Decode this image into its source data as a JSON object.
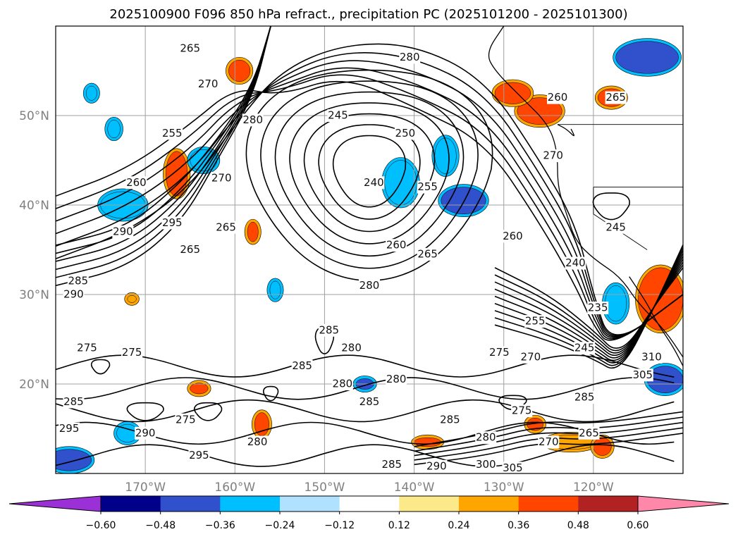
{
  "chart_data": {
    "type": "contour",
    "title": "2025100900 F096 850 hPa refract., precipitation PC (2025101200 - 2025101300)",
    "xaxis": {
      "ticks": [
        "170°W",
        "160°W",
        "150°W",
        "140°W",
        "130°W",
        "120°W"
      ],
      "tick_values": [
        -170,
        -160,
        -150,
        -140,
        -130,
        -120
      ],
      "range": [
        -180,
        -110
      ]
    },
    "yaxis": {
      "ticks": [
        "20°N",
        "30°N",
        "40°N",
        "50°N"
      ],
      "tick_values": [
        20,
        30,
        40,
        50
      ],
      "range": [
        10,
        60
      ]
    },
    "grid": true,
    "colorbar": {
      "orientation": "horizontal",
      "extend": "both",
      "tick_labels": [
        "−0.60",
        "−0.48",
        "−0.36",
        "−0.24",
        "−0.12",
        "0.12",
        "0.24",
        "0.36",
        "0.48",
        "0.60"
      ],
      "boundaries": [
        -0.6,
        -0.48,
        -0.36,
        -0.24,
        -0.12,
        0.12,
        0.24,
        0.36,
        0.48,
        0.6
      ],
      "colors": [
        "#9b30d6",
        "#00008b",
        "#3050cc",
        "#00bfff",
        "#b0e2ff",
        "#ffffff",
        "#fce98a",
        "#ffa500",
        "#ff4500",
        "#b22222",
        "#ff88aa"
      ]
    },
    "contour_labels": [
      {
        "text": "265",
        "lon": -165,
        "lat": 57.5
      },
      {
        "text": "280",
        "lon": -140.5,
        "lat": 56.5
      },
      {
        "text": "270",
        "lon": -163,
        "lat": 53.5
      },
      {
        "text": "280",
        "lon": -158,
        "lat": 49.5
      },
      {
        "text": "245",
        "lon": -148.5,
        "lat": 50
      },
      {
        "text": "250",
        "lon": -141,
        "lat": 48
      },
      {
        "text": "255",
        "lon": -167,
        "lat": 48
      },
      {
        "text": "240",
        "lon": -144.5,
        "lat": 42.5
      },
      {
        "text": "255",
        "lon": -138.5,
        "lat": 42
      },
      {
        "text": "260",
        "lon": -171,
        "lat": 42.5
      },
      {
        "text": "270",
        "lon": -161.5,
        "lat": 43
      },
      {
        "text": "260",
        "lon": -124,
        "lat": 52
      },
      {
        "text": "265",
        "lon": -117.5,
        "lat": 52
      },
      {
        "text": "270",
        "lon": -124.5,
        "lat": 45.5
      },
      {
        "text": "295",
        "lon": -167,
        "lat": 38
      },
      {
        "text": "290",
        "lon": -172.5,
        "lat": 37
      },
      {
        "text": "265",
        "lon": -161,
        "lat": 37.5
      },
      {
        "text": "265",
        "lon": -165,
        "lat": 35
      },
      {
        "text": "245",
        "lon": -117.5,
        "lat": 37.5
      },
      {
        "text": "260",
        "lon": -142,
        "lat": 35.5
      },
      {
        "text": "265",
        "lon": -138.5,
        "lat": 34.5
      },
      {
        "text": "260",
        "lon": -129,
        "lat": 36.5
      },
      {
        "text": "240",
        "lon": -122,
        "lat": 33.5
      },
      {
        "text": "285",
        "lon": -177.5,
        "lat": 31.5
      },
      {
        "text": "290",
        "lon": -178,
        "lat": 30
      },
      {
        "text": "280",
        "lon": -145,
        "lat": 31
      },
      {
        "text": "235",
        "lon": -119.5,
        "lat": 28.5
      },
      {
        "text": "255",
        "lon": -126.5,
        "lat": 27
      },
      {
        "text": "285",
        "lon": -149.5,
        "lat": 26
      },
      {
        "text": "245",
        "lon": -121,
        "lat": 24
      },
      {
        "text": "275",
        "lon": -176.5,
        "lat": 24
      },
      {
        "text": "275",
        "lon": -171.5,
        "lat": 23.5
      },
      {
        "text": "280",
        "lon": -147,
        "lat": 24
      },
      {
        "text": "275",
        "lon": -130.5,
        "lat": 23.5
      },
      {
        "text": "270",
        "lon": -127,
        "lat": 23
      },
      {
        "text": "285",
        "lon": -152.5,
        "lat": 22
      },
      {
        "text": "280",
        "lon": -142,
        "lat": 20.5
      },
      {
        "text": "280",
        "lon": -148,
        "lat": 20
      },
      {
        "text": "285",
        "lon": -121,
        "lat": 18.5
      },
      {
        "text": "285",
        "lon": -178,
        "lat": 18
      },
      {
        "text": "285",
        "lon": -145,
        "lat": 18
      },
      {
        "text": "275",
        "lon": -165.5,
        "lat": 16
      },
      {
        "text": "275",
        "lon": -128,
        "lat": 17
      },
      {
        "text": "295",
        "lon": -178.5,
        "lat": 15
      },
      {
        "text": "290",
        "lon": -170,
        "lat": 14.5
      },
      {
        "text": "285",
        "lon": -136,
        "lat": 16
      },
      {
        "text": "280",
        "lon": -157.5,
        "lat": 13.5
      },
      {
        "text": "270",
        "lon": -125,
        "lat": 13.5
      },
      {
        "text": "265",
        "lon": -120.5,
        "lat": 14.5
      },
      {
        "text": "280",
        "lon": -132,
        "lat": 14
      },
      {
        "text": "295",
        "lon": -164,
        "lat": 12
      },
      {
        "text": "285",
        "lon": -142.5,
        "lat": 11
      },
      {
        "text": "290",
        "lon": -137.5,
        "lat": 10.8
      },
      {
        "text": "300",
        "lon": -132,
        "lat": 11
      },
      {
        "text": "305",
        "lon": -129,
        "lat": 10.6
      },
      {
        "text": "305",
        "lon": -114.5,
        "lat": 21
      },
      {
        "text": "310",
        "lon": -113.5,
        "lat": 23
      }
    ],
    "precip_blobs": [
      {
        "lon": -114,
        "lat": 56.5,
        "rx": 3.5,
        "ry": 1.8,
        "level": -0.48
      },
      {
        "lon": -126,
        "lat": 50.5,
        "rx": 2.5,
        "ry": 1.5,
        "level": 0.36
      },
      {
        "lon": -129,
        "lat": 52.5,
        "rx": 2,
        "ry": 1.2,
        "level": 0.36
      },
      {
        "lon": -118,
        "lat": 52,
        "rx": 1.5,
        "ry": 1,
        "level": 0.36
      },
      {
        "lon": -166.5,
        "lat": 43.5,
        "rx": 1.2,
        "ry": 2.5,
        "level": 0.36
      },
      {
        "lon": -172.5,
        "lat": 40,
        "rx": 2.5,
        "ry": 1.5,
        "level": -0.36
      },
      {
        "lon": -141.5,
        "lat": 42.5,
        "rx": 1.8,
        "ry": 2.5,
        "level": -0.36
      },
      {
        "lon": -134.5,
        "lat": 40.5,
        "rx": 2.5,
        "ry": 1.5,
        "level": -0.48
      },
      {
        "lon": -136.5,
        "lat": 45.5,
        "rx": 1.2,
        "ry": 2,
        "level": -0.36
      },
      {
        "lon": -163.5,
        "lat": 45,
        "rx": 1.5,
        "ry": 1.2,
        "level": -0.36
      },
      {
        "lon": -112.5,
        "lat": 29.5,
        "rx": 2.5,
        "ry": 3.5,
        "level": 0.36
      },
      {
        "lon": -117.5,
        "lat": 29,
        "rx": 1.2,
        "ry": 2,
        "level": -0.36
      },
      {
        "lon": -112,
        "lat": 20.5,
        "rx": 2,
        "ry": 1.5,
        "level": -0.48
      },
      {
        "lon": -178.5,
        "lat": 11.5,
        "rx": 2.5,
        "ry": 1.2,
        "level": -0.48
      },
      {
        "lon": -157,
        "lat": 15.5,
        "rx": 0.8,
        "ry": 1.3,
        "level": 0.36
      },
      {
        "lon": -122.5,
        "lat": 13.5,
        "rx": 3,
        "ry": 0.8,
        "level": 0.24
      },
      {
        "lon": -119,
        "lat": 13,
        "rx": 1,
        "ry": 1,
        "level": 0.36
      },
      {
        "lon": -164,
        "lat": 19.5,
        "rx": 1,
        "ry": 0.6,
        "level": 0.36
      },
      {
        "lon": -145.5,
        "lat": 20,
        "rx": 1,
        "ry": 0.6,
        "level": -0.48
      },
      {
        "lon": -176,
        "lat": 52.5,
        "rx": 0.6,
        "ry": 0.8,
        "level": -0.36
      },
      {
        "lon": -159.5,
        "lat": 55,
        "rx": 1.2,
        "ry": 1.2,
        "level": 0.36
      },
      {
        "lon": -173.5,
        "lat": 48.5,
        "rx": 0.7,
        "ry": 1,
        "level": -0.36
      },
      {
        "lon": -155.5,
        "lat": 30.5,
        "rx": 0.6,
        "ry": 1,
        "level": -0.36
      },
      {
        "lon": -172,
        "lat": 14.5,
        "rx": 1.2,
        "ry": 1,
        "level": -0.36
      },
      {
        "lon": -158,
        "lat": 37,
        "rx": 0.6,
        "ry": 1.1,
        "level": 0.36
      },
      {
        "lon": -171.5,
        "lat": 29.5,
        "rx": 0.5,
        "ry": 0.4,
        "level": 0.24
      },
      {
        "lon": -126.5,
        "lat": 15.5,
        "rx": 0.9,
        "ry": 0.7,
        "level": 0.36
      },
      {
        "lon": -138.5,
        "lat": 13.5,
        "rx": 1.5,
        "ry": 0.5,
        "level": 0.36
      }
    ]
  }
}
